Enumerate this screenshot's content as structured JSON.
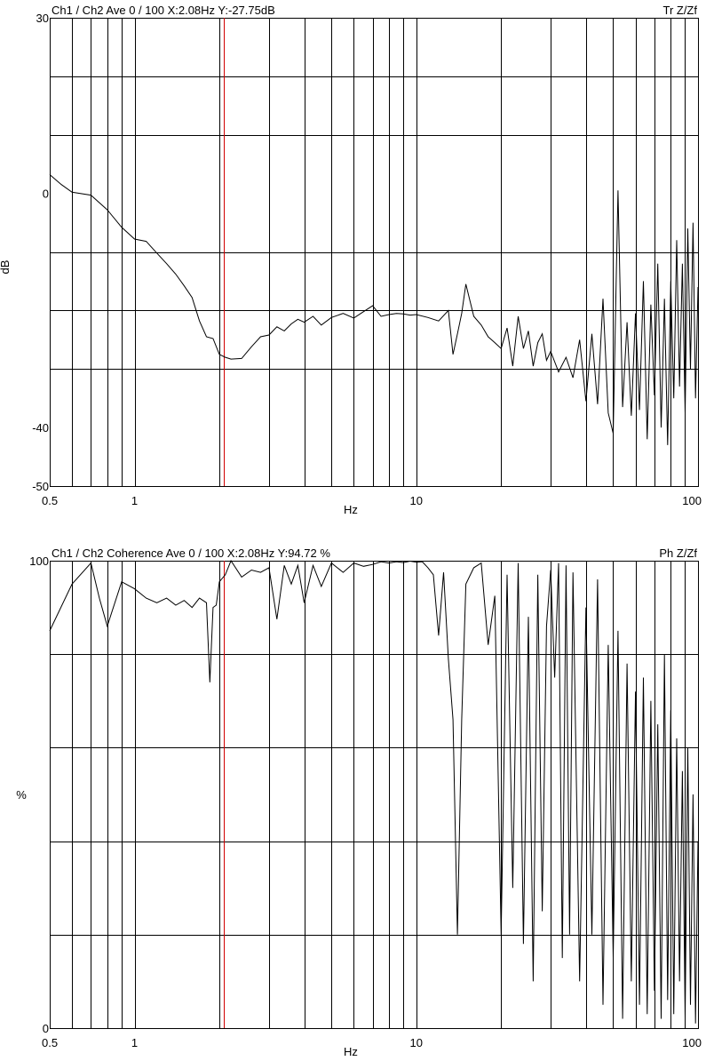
{
  "chart_data": [
    {
      "type": "line",
      "header": "Ch1 / Ch2  Ave 0 / 100  X:2.08Hz  Y:-27.75dB",
      "mode_label": "Tr Z/Zf",
      "xlabel": "Hz",
      "ylabel": "dB",
      "x_scale": "log",
      "xlim": [
        0.5,
        100
      ],
      "ylim": [
        -50,
        30
      ],
      "x_tick_labels": [
        {
          "value": 0.5,
          "label": "0.5"
        },
        {
          "value": 1,
          "label": "1"
        },
        {
          "value": 10,
          "label": "10"
        },
        {
          "value": 100,
          "label": "100"
        }
      ],
      "y_tick_labels": [
        {
          "value": 30,
          "label": "30"
        },
        {
          "value": 0,
          "label": "0"
        },
        {
          "value": -40,
          "label": "-40"
        },
        {
          "value": -50,
          "label": "-50"
        }
      ],
      "y_grid": [
        20,
        10,
        -10,
        -20,
        -30
      ],
      "cursor_x": 2.08,
      "cursor_y": -27.75,
      "cursor_color": "#d00000",
      "series": [
        {
          "color": "#000000",
          "x": [
            0.5,
            0.55,
            0.6,
            0.7,
            0.8,
            0.9,
            1.0,
            1.1,
            1.2,
            1.3,
            1.4,
            1.5,
            1.6,
            1.7,
            1.8,
            1.9,
            2.0,
            2.1,
            2.2,
            2.4,
            2.6,
            2.8,
            3.0,
            3.2,
            3.4,
            3.6,
            3.8,
            4.0,
            4.3,
            4.6,
            5.0,
            5.5,
            6.0,
            6.5,
            7.0,
            7.5,
            8.0,
            8.5,
            9.0,
            9.5,
            10.0,
            11.0,
            12.0,
            13.0,
            13.5,
            14.0,
            14.5,
            15.0,
            16.0,
            17.0,
            18.0,
            19.0,
            20.0,
            21.0,
            22.0,
            23.0,
            24.0,
            25.0,
            26.0,
            27.0,
            28.0,
            29.0,
            30.0,
            32.0,
            34.0,
            36.0,
            38.0,
            40.0,
            42.0,
            44.0,
            46.0,
            48.0,
            50.0,
            51.0,
            52.0,
            54.0,
            56.0,
            58.0,
            60.0,
            62.0,
            64.0,
            66.0,
            68.0,
            70.0,
            72.0,
            74.0,
            76.0,
            78.0,
            80.0,
            82.0,
            84.0,
            86.0,
            88.0,
            90.0,
            92.0,
            94.0,
            96.0,
            98.0,
            100.0
          ],
          "values": [
            3.2,
            1.5,
            0.2,
            -0.3,
            -2.8,
            -5.8,
            -7.8,
            -8.2,
            -10.2,
            -12.0,
            -13.8,
            -15.8,
            -17.8,
            -21.8,
            -24.5,
            -24.8,
            -27.5,
            -28.0,
            -28.3,
            -28.2,
            -26.2,
            -24.5,
            -24.2,
            -22.8,
            -23.5,
            -22.3,
            -21.5,
            -22.0,
            -21.0,
            -22.5,
            -21.2,
            -20.5,
            -21.3,
            -20.2,
            -19.2,
            -21.0,
            -20.7,
            -20.5,
            -20.6,
            -20.8,
            -20.7,
            -21.2,
            -21.8,
            -20.0,
            -27.5,
            -24.0,
            -20.5,
            -15.5,
            -21.0,
            -22.5,
            -24.5,
            -25.5,
            -26.5,
            -23.0,
            -29.5,
            -21.0,
            -26.5,
            -23.5,
            -29.5,
            -25.5,
            -24.0,
            -28.5,
            -27.0,
            -30.5,
            -28.0,
            -31.5,
            -25.0,
            -35.5,
            -24.0,
            -36.0,
            -18.0,
            -37.5,
            -41.0,
            -20.0,
            0.5,
            -36.5,
            -22.0,
            -38.0,
            -20.5,
            -37.0,
            -15.0,
            -42.0,
            -19.0,
            -34.5,
            -12.0,
            -40.0,
            -18.0,
            -43.0,
            -15.0,
            -35.0,
            -8.0,
            -33.0,
            -12.0,
            -37.5,
            -6.0,
            -30.0,
            -5.0,
            -35.0,
            -16.0
          ]
        }
      ]
    },
    {
      "type": "line",
      "header": "Ch1 / Ch2  Coherence Ave 0 / 100  X:2.08Hz  Y:94.72 %",
      "mode_label": "Ph Z/Zf",
      "xlabel": "Hz",
      "ylabel": "%",
      "x_scale": "log",
      "xlim": [
        0.5,
        100
      ],
      "ylim": [
        0,
        100
      ],
      "x_tick_labels": [
        {
          "value": 0.5,
          "label": "0.5"
        },
        {
          "value": 1,
          "label": "1"
        },
        {
          "value": 10,
          "label": "10"
        },
        {
          "value": 100,
          "label": "100"
        }
      ],
      "y_tick_labels": [
        {
          "value": 100,
          "label": "100"
        },
        {
          "value": 0,
          "label": "0"
        }
      ],
      "y_grid": [
        80,
        60,
        40,
        20
      ],
      "cursor_x": 2.08,
      "cursor_y": 94.72,
      "cursor_color": "#d00000",
      "series": [
        {
          "color": "#000000",
          "x": [
            0.5,
            0.6,
            0.7,
            0.75,
            0.8,
            0.9,
            1.0,
            1.1,
            1.2,
            1.3,
            1.4,
            1.5,
            1.6,
            1.7,
            1.8,
            1.85,
            1.9,
            1.95,
            2.0,
            2.1,
            2.2,
            2.4,
            2.6,
            2.8,
            3.0,
            3.2,
            3.4,
            3.6,
            3.8,
            4.0,
            4.3,
            4.6,
            5.0,
            5.5,
            6.0,
            6.5,
            7.0,
            7.5,
            8.0,
            8.5,
            9.0,
            9.5,
            10.0,
            10.5,
            11.0,
            11.5,
            12.0,
            12.5,
            13.0,
            13.5,
            14.0,
            14.5,
            15.0,
            16.0,
            17.0,
            18.0,
            19.0,
            20.0,
            21.0,
            22.0,
            23.0,
            24.0,
            25.0,
            26.0,
            27.0,
            28.0,
            29.0,
            30.0,
            31.0,
            32.0,
            33.0,
            34.0,
            35.0,
            36.0,
            38.0,
            40.0,
            42.0,
            44.0,
            46.0,
            48.0,
            50.0,
            52.0,
            54.0,
            56.0,
            58.0,
            60.0,
            62.0,
            64.0,
            66.0,
            68.0,
            70.0,
            72.0,
            74.0,
            76.0,
            78.0,
            80.0,
            82.0,
            84.0,
            86.0,
            88.0,
            90.0,
            92.0,
            94.0,
            96.0,
            98.0,
            100.0
          ],
          "values": [
            85.0,
            95.0,
            99.5,
            92.0,
            86.0,
            95.5,
            94.0,
            92.0,
            91.0,
            92.0,
            90.5,
            91.5,
            90.0,
            92.0,
            91.0,
            74.0,
            90.0,
            90.5,
            95.5,
            97.0,
            100.0,
            96.5,
            98.0,
            97.5,
            98.5,
            87.5,
            99.0,
            95.0,
            99.0,
            91.0,
            99.0,
            94.5,
            99.5,
            97.5,
            99.5,
            98.8,
            99.2,
            99.8,
            99.5,
            99.8,
            99.6,
            99.9,
            99.7,
            99.8,
            98.5,
            97.0,
            84.0,
            97.5,
            79.0,
            66.0,
            20.0,
            66.0,
            95.0,
            98.5,
            99.5,
            82.0,
            92.5,
            20.0,
            97.0,
            30.0,
            99.5,
            18.0,
            88.0,
            10.0,
            97.0,
            25.0,
            86.0,
            98.0,
            75.0,
            99.5,
            15.0,
            99.0,
            20.0,
            97.5,
            10.0,
            90.0,
            20.0,
            96.0,
            5.0,
            82.0,
            15.0,
            85.0,
            2.0,
            78.0,
            10.0,
            72.0,
            5.0,
            75.0,
            3.0,
            70.0,
            8.0,
            65.0,
            2.0,
            80.0,
            6.0,
            68.0,
            3.0,
            62.0,
            10.0,
            55.0,
            2.0,
            60.0,
            5.0,
            50.0,
            1.0,
            40.0
          ]
        }
      ]
    }
  ]
}
